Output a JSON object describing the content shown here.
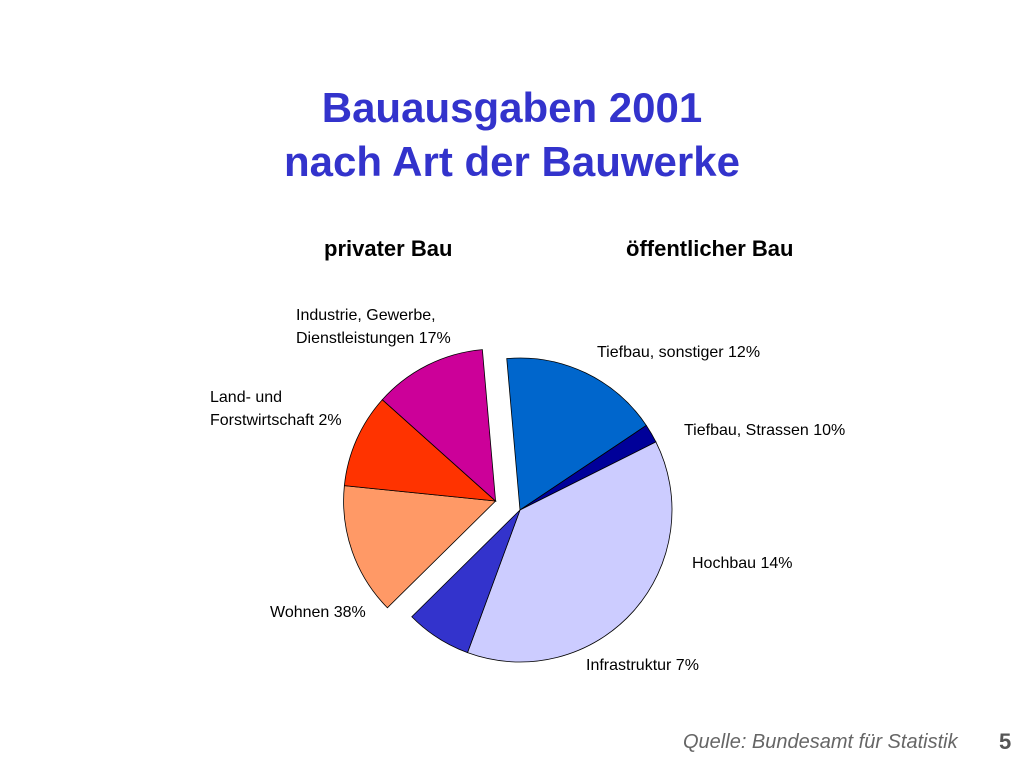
{
  "title_line1": "Bauausgaben 2001",
  "title_line2": "nach Art der Bauwerke",
  "groups": {
    "private": "privater Bau",
    "public": "öffentlicher Bau"
  },
  "labels": {
    "industrie_1": "Industrie, Gewerbe,",
    "industrie_2": "Dienstleistungen 17%",
    "land_1": "Land- und",
    "land_2": "Forstwirtschaft 2%",
    "wohnen": "Wohnen 38%",
    "infra": "Infrastruktur 7%",
    "tiefbau_sonst": "Tiefbau, sonstiger 12%",
    "tiefbau_str": "Tiefbau, Strassen 10%",
    "hochbau": "Hochbau 14%"
  },
  "source": "Quelle: Bundesamt für Statistik",
  "page_number": "5",
  "chart_data": {
    "type": "pie",
    "title": "Bauausgaben 2001 nach Art der Bauwerke",
    "unit": "%",
    "slices": [
      {
        "label": "Industrie, Gewerbe, Dienstleistungen",
        "value": 17,
        "group": "privater Bau",
        "color": "#0066cc"
      },
      {
        "label": "Land- und Forstwirtschaft",
        "value": 2,
        "group": "privater Bau",
        "color": "#000099"
      },
      {
        "label": "Wohnen",
        "value": 38,
        "group": "privater Bau",
        "color": "#ccccff"
      },
      {
        "label": "Infrastruktur",
        "value": 7,
        "group": "privater Bau",
        "color": "#3333cc"
      },
      {
        "label": "Hochbau",
        "value": 14,
        "group": "öffentlicher Bau",
        "color": "#ff9966"
      },
      {
        "label": "Tiefbau, Strassen",
        "value": 10,
        "group": "öffentlicher Bau",
        "color": "#ff3300"
      },
      {
        "label": "Tiefbau, sonstiger",
        "value": 12,
        "group": "öffentlicher Bau",
        "color": "#cc0099"
      }
    ]
  }
}
